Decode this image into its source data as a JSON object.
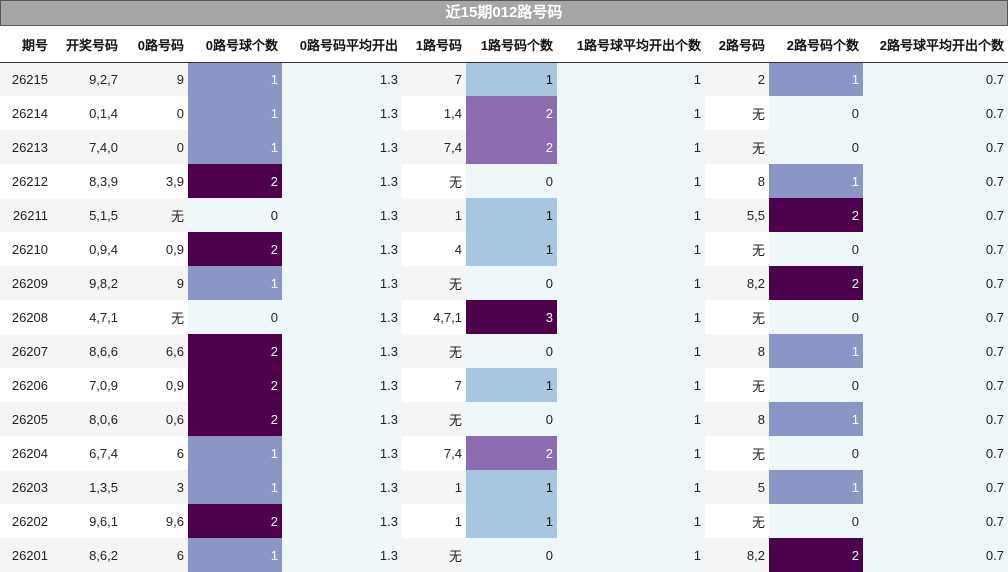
{
  "title": "近15期012路号码",
  "headers": [
    "期号",
    "开奖号码",
    "0路号码",
    "0路号球个数",
    "0路号码平均开出",
    "1路号码",
    "1路号码个数",
    "1路号球平均开出个数",
    "2路号码",
    "2路号码个数",
    "2路号球平均开出个数"
  ],
  "rows": [
    {
      "period": "26215",
      "draw": "9,2,7",
      "r0": "9",
      "r0c": "1",
      "r0avg": "1.3",
      "r1": "7",
      "r1c": "1",
      "r1avg": "1",
      "r2": "2",
      "r2c": "1",
      "r2avg": "0.7"
    },
    {
      "period": "26214",
      "draw": "0,1,4",
      "r0": "0",
      "r0c": "1",
      "r0avg": "1.3",
      "r1": "1,4",
      "r1c": "2",
      "r1avg": "1",
      "r2": "无",
      "r2c": "0",
      "r2avg": "0.7"
    },
    {
      "period": "26213",
      "draw": "7,4,0",
      "r0": "0",
      "r0c": "1",
      "r0avg": "1.3",
      "r1": "7,4",
      "r1c": "2",
      "r1avg": "1",
      "r2": "无",
      "r2c": "0",
      "r2avg": "0.7"
    },
    {
      "period": "26212",
      "draw": "8,3,9",
      "r0": "3,9",
      "r0c": "2",
      "r0avg": "1.3",
      "r1": "无",
      "r1c": "0",
      "r1avg": "1",
      "r2": "8",
      "r2c": "1",
      "r2avg": "0.7"
    },
    {
      "period": "26211",
      "draw": "5,1,5",
      "r0": "无",
      "r0c": "0",
      "r0avg": "1.3",
      "r1": "1",
      "r1c": "1",
      "r1avg": "1",
      "r2": "5,5",
      "r2c": "2",
      "r2avg": "0.7"
    },
    {
      "period": "26210",
      "draw": "0,9,4",
      "r0": "0,9",
      "r0c": "2",
      "r0avg": "1.3",
      "r1": "4",
      "r1c": "1",
      "r1avg": "1",
      "r2": "无",
      "r2c": "0",
      "r2avg": "0.7"
    },
    {
      "period": "26209",
      "draw": "9,8,2",
      "r0": "9",
      "r0c": "1",
      "r0avg": "1.3",
      "r1": "无",
      "r1c": "0",
      "r1avg": "1",
      "r2": "8,2",
      "r2c": "2",
      "r2avg": "0.7"
    },
    {
      "period": "26208",
      "draw": "4,7,1",
      "r0": "无",
      "r0c": "0",
      "r0avg": "1.3",
      "r1": "4,7,1",
      "r1c": "3",
      "r1avg": "1",
      "r2": "无",
      "r2c": "0",
      "r2avg": "0.7"
    },
    {
      "period": "26207",
      "draw": "8,6,6",
      "r0": "6,6",
      "r0c": "2",
      "r0avg": "1.3",
      "r1": "无",
      "r1c": "0",
      "r1avg": "1",
      "r2": "8",
      "r2c": "1",
      "r2avg": "0.7"
    },
    {
      "period": "26206",
      "draw": "7,0,9",
      "r0": "0,9",
      "r0c": "2",
      "r0avg": "1.3",
      "r1": "7",
      "r1c": "1",
      "r1avg": "1",
      "r2": "无",
      "r2c": "0",
      "r2avg": "0.7"
    },
    {
      "period": "26205",
      "draw": "8,0,6",
      "r0": "0,6",
      "r0c": "2",
      "r0avg": "1.3",
      "r1": "无",
      "r1c": "0",
      "r1avg": "1",
      "r2": "8",
      "r2c": "1",
      "r2avg": "0.7"
    },
    {
      "period": "26204",
      "draw": "6,7,4",
      "r0": "6",
      "r0c": "1",
      "r0avg": "1.3",
      "r1": "7,4",
      "r1c": "2",
      "r1avg": "1",
      "r2": "无",
      "r2c": "0",
      "r2avg": "0.7"
    },
    {
      "period": "26203",
      "draw": "1,3,5",
      "r0": "3",
      "r0c": "1",
      "r0avg": "1.3",
      "r1": "1",
      "r1c": "1",
      "r1avg": "1",
      "r2": "5",
      "r2c": "1",
      "r2avg": "0.7"
    },
    {
      "period": "26202",
      "draw": "9,6,1",
      "r0": "9,6",
      "r0c": "2",
      "r0avg": "1.3",
      "r1": "1",
      "r1c": "1",
      "r1avg": "1",
      "r2": "无",
      "r2c": "0",
      "r2avg": "0.7"
    },
    {
      "period": "26201",
      "draw": "8,6,2",
      "r0": "6",
      "r0c": "1",
      "r0avg": "1.3",
      "r1": "无",
      "r1c": "0",
      "r1avg": "1",
      "r2": "8,2",
      "r2c": "2",
      "r2avg": "0.7"
    }
  ],
  "colors": {
    "count0_1": "#8c96c6",
    "count0_2": "#4d004b",
    "count1_1": "#a9c6e0",
    "count1_2": "#8c6bb1",
    "count1_3": "#4d004b",
    "count2_1": "#8c96c6",
    "count2_2": "#4d004b",
    "zero_tint": "#eef8fb",
    "title_bg": "#a6a6a6"
  }
}
